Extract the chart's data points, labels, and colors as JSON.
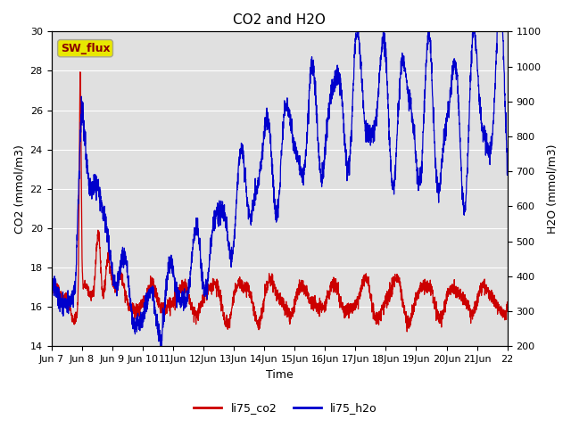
{
  "title": "CO2 and H2O",
  "xlabel": "Time",
  "ylabel_left": "CO2 (mmol/m3)",
  "ylabel_right": "H2O (mmol/m3)",
  "ylim_left": [
    14,
    30
  ],
  "ylim_right": [
    200,
    1100
  ],
  "co2_color": "#cc0000",
  "h2o_color": "#0000cc",
  "bg_color": "#e0e0e0",
  "annotation_text": "SW_flux",
  "annotation_bg": "#e8e800",
  "annotation_border": "#8b0000",
  "legend_labels": [
    "li75_co2",
    "li75_h2o"
  ],
  "xtick_labels": [
    "Jun 7",
    "Jun 8",
    "Jun 9",
    "Jun 10",
    "11Jun",
    "12Jun",
    "13Jun",
    "14Jun",
    "15Jun",
    "16Jun",
    "17Jun",
    "18Jun",
    "19Jun",
    "20Jun",
    "21Jun",
    "22"
  ],
  "n_points": 3000,
  "xlim": [
    0,
    15
  ],
  "fontsize_title": 11,
  "fontsize_labels": 9,
  "fontsize_ticks": 8,
  "linewidth": 0.9
}
